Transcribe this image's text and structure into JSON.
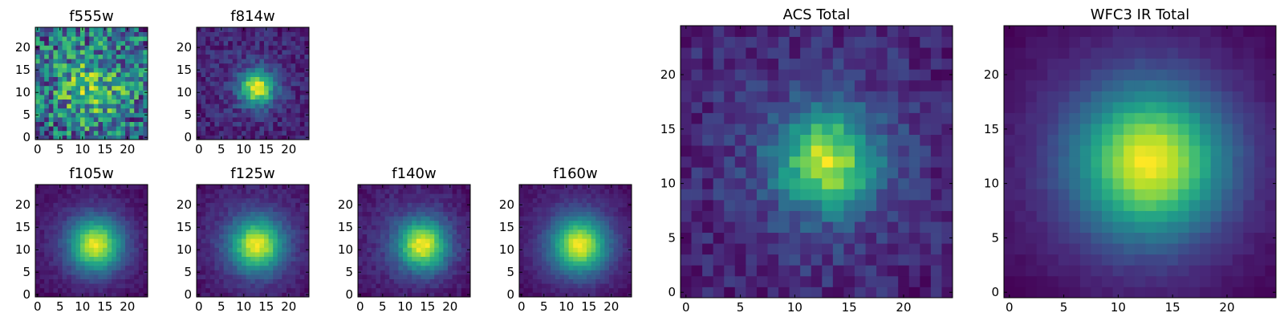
{
  "figure": {
    "panel_order": [
      "f555w",
      "f814w",
      "f105w",
      "f125w",
      "f140w",
      "f160w",
      "ACS Total",
      "WFC3 IR Total"
    ]
  },
  "chart_data": [
    {
      "type": "heatmap",
      "title": "f555w",
      "xlim": [
        0,
        25
      ],
      "ylim": [
        0,
        25
      ],
      "xticks": [
        "0",
        "5",
        "10",
        "15",
        "20"
      ],
      "yticks": [
        "0",
        "5",
        "10",
        "15",
        "20"
      ],
      "colormap": "viridis",
      "grid": false,
      "image": {
        "size": 25,
        "peak": [
          12,
          11
        ],
        "background": 0.78,
        "amplitude": 0.1,
        "sigma": 6.0,
        "noise": 0.2,
        "falloff": 0.0,
        "seed": 11
      }
    },
    {
      "type": "heatmap",
      "title": "f814w",
      "xlim": [
        0,
        25
      ],
      "ylim": [
        0,
        25
      ],
      "xticks": [
        "0",
        "5",
        "10",
        "15",
        "20"
      ],
      "yticks": [
        "0",
        "5",
        "10",
        "15",
        "20"
      ],
      "colormap": "viridis",
      "grid": false,
      "image": {
        "size": 25,
        "peak": [
          13,
          11
        ],
        "background": 0.38,
        "amplitude": 0.6,
        "sigma": 2.6,
        "noise": 0.15,
        "falloff": 0.05,
        "seed": 23
      }
    },
    {
      "type": "heatmap",
      "title": "f105w",
      "xlim": [
        0,
        25
      ],
      "ylim": [
        0,
        25
      ],
      "xticks": [
        "0",
        "5",
        "10",
        "15",
        "20"
      ],
      "yticks": [
        "0",
        "5",
        "10",
        "15",
        "20"
      ],
      "colormap": "viridis",
      "grid": false,
      "image": {
        "size": 25,
        "peak": [
          13,
          11
        ],
        "background": 0.22,
        "amplitude": 0.75,
        "sigma": 4.0,
        "noise": 0.08,
        "falloff": 0.12,
        "seed": 37
      }
    },
    {
      "type": "heatmap",
      "title": "f125w",
      "xlim": [
        0,
        25
      ],
      "ylim": [
        0,
        25
      ],
      "xticks": [
        "0",
        "5",
        "10",
        "15",
        "20"
      ],
      "yticks": [
        "0",
        "5",
        "10",
        "15",
        "20"
      ],
      "colormap": "viridis",
      "grid": false,
      "image": {
        "size": 25,
        "peak": [
          13,
          11
        ],
        "background": 0.22,
        "amplitude": 0.72,
        "sigma": 4.0,
        "noise": 0.09,
        "falloff": 0.12,
        "seed": 41
      }
    },
    {
      "type": "heatmap",
      "title": "f140w",
      "xlim": [
        0,
        25
      ],
      "ylim": [
        0,
        25
      ],
      "xticks": [
        "0",
        "5",
        "10",
        "15",
        "20"
      ],
      "yticks": [
        "0",
        "5",
        "10",
        "15",
        "20"
      ],
      "colormap": "viridis",
      "grid": false,
      "image": {
        "size": 25,
        "peak": [
          14,
          11
        ],
        "background": 0.2,
        "amplitude": 0.75,
        "sigma": 3.8,
        "noise": 0.1,
        "falloff": 0.12,
        "seed": 53
      }
    },
    {
      "type": "heatmap",
      "title": "f160w",
      "xlim": [
        0,
        25
      ],
      "ylim": [
        0,
        25
      ],
      "xticks": [
        "0",
        "5",
        "10",
        "15",
        "20"
      ],
      "yticks": [
        "0",
        "5",
        "10",
        "15",
        "20"
      ],
      "colormap": "viridis",
      "grid": false,
      "image": {
        "size": 25,
        "peak": [
          13,
          11
        ],
        "background": 0.16,
        "amplitude": 0.8,
        "sigma": 4.2,
        "noise": 0.07,
        "falloff": 0.14,
        "seed": 67
      }
    },
    {
      "type": "heatmap",
      "title": "ACS Total",
      "xlim": [
        0,
        25
      ],
      "ylim": [
        0,
        25
      ],
      "xticks": [
        "0",
        "5",
        "10",
        "15",
        "20"
      ],
      "yticks": [
        "0",
        "5",
        "10",
        "15",
        "20"
      ],
      "colormap": "viridis",
      "grid": false,
      "image": {
        "size": 25,
        "peak": [
          13,
          12
        ],
        "background": 0.48,
        "amplitude": 0.5,
        "sigma": 3.2,
        "noise": 0.14,
        "falloff": 0.06,
        "seed": 79
      }
    },
    {
      "type": "heatmap",
      "title": "WFC3 IR Total",
      "xlim": [
        0,
        25
      ],
      "ylim": [
        0,
        25
      ],
      "xticks": [
        "0",
        "5",
        "10",
        "15",
        "20"
      ],
      "yticks": [
        "0",
        "5",
        "10",
        "15",
        "20"
      ],
      "colormap": "viridis",
      "grid": false,
      "image": {
        "size": 25,
        "peak": [
          13,
          12
        ],
        "background": 0.12,
        "amplitude": 0.86,
        "sigma": 4.6,
        "noise": 0.04,
        "falloff": 0.16,
        "seed": 97
      }
    }
  ]
}
